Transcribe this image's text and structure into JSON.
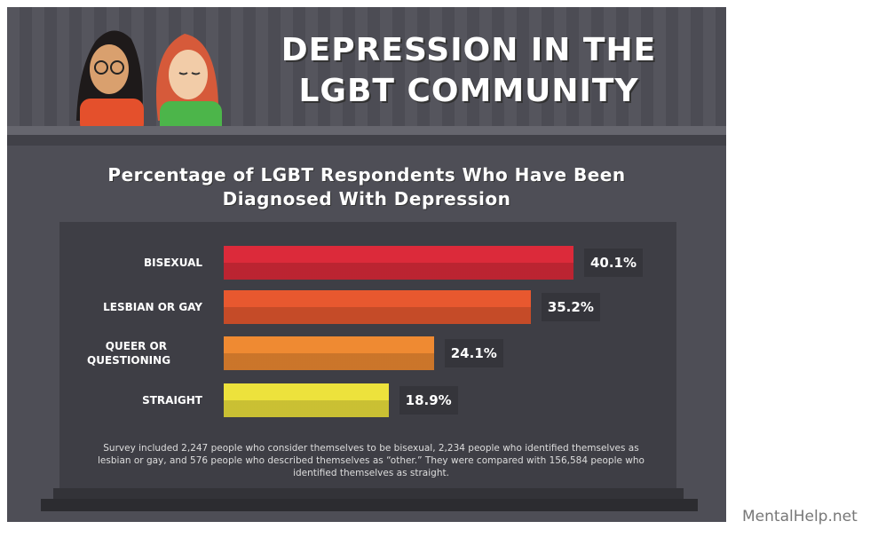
{
  "header": {
    "title": "DEPRESSION IN THE LGBT COMMUNITY"
  },
  "chart_data": {
    "type": "bar",
    "orientation": "horizontal",
    "title": "Percentage of LGBT Respondents Who Have Been Diagnosed With Depression",
    "categories": [
      "BISEXUAL",
      "LESBIAN OR GAY",
      "QUEER OR QUESTIONING",
      "STRAIGHT"
    ],
    "values": [
      40.1,
      35.2,
      24.1,
      18.9
    ],
    "value_labels": [
      "40.1%",
      "35.2%",
      "24.1%",
      "18.9%"
    ],
    "colors": [
      "#dc2a3a",
      "#e8582f",
      "#ef8a32",
      "#ede23c"
    ],
    "note": "Survey included 2,247 people who consider themselves to be bisexual, 2,234 people who identified themselves as lesbian or gay, and 576 people who described themselves as “other.” They were compared with 156,584 people who identified themselves as straight."
  },
  "source": "MentalHelp.net"
}
